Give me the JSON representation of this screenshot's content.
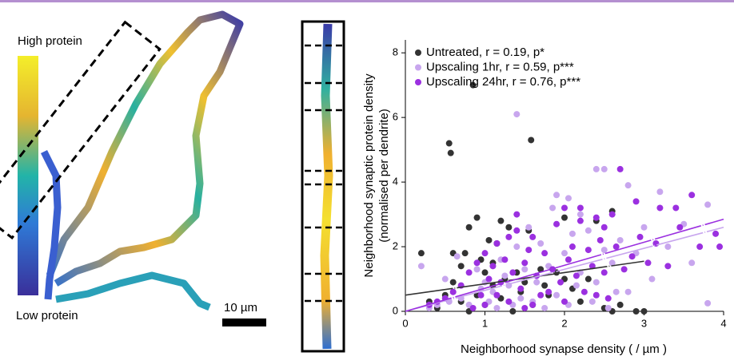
{
  "image_panel": {
    "colorbar_high": "High protein",
    "colorbar_low": "Low protein",
    "scale_bar": "10 µm"
  },
  "chart_data": {
    "type": "scatter",
    "x_label": "Neighborhood synapse density ( / µm )",
    "y_label": [
      "Neighborhood synaptic protein density",
      "(normalised per dendrite)"
    ],
    "xlim": [
      0,
      4
    ],
    "ylim": [
      0,
      8.4
    ],
    "xticks": [
      0,
      1,
      2,
      3,
      4
    ],
    "yticks": [
      0,
      2,
      4,
      6,
      8
    ],
    "legend": "upper left",
    "series": [
      {
        "name": "Untreated, r = 0.19, p*",
        "color": "#333333",
        "x": [
          0.2,
          0.55,
          0.57,
          0.85,
          1.58,
          0.9,
          0.8,
          1.05,
          1.15,
          1.3,
          1.55,
          1.2,
          0.6,
          0.7,
          0.75,
          0.95,
          1.0,
          1.1,
          1.25,
          1.4,
          1.5,
          1.7,
          1.8,
          1.9,
          2.0,
          2.1,
          2.2,
          2.4,
          2.5,
          2.6,
          2.7,
          2.9,
          3.0,
          2.6,
          0.3,
          0.5,
          0.6,
          0.9,
          1.0,
          1.2,
          1.35,
          1.45,
          1.6,
          1.75,
          0.4,
          0.8,
          2.3,
          2.0,
          1.1,
          0.7
        ],
        "values": [
          1.8,
          5.2,
          4.9,
          7.0,
          5.3,
          2.9,
          2.6,
          2.2,
          2.1,
          2.6,
          2.5,
          2.8,
          1.8,
          1.4,
          1.8,
          1.6,
          1.2,
          1.5,
          1.0,
          1.2,
          0.9,
          1.3,
          0.5,
          1.2,
          2.9,
          0.7,
          0.3,
          2.8,
          0.1,
          3.1,
          0.2,
          0.0,
          0.0,
          0.0,
          0.3,
          0.5,
          0.9,
          0.5,
          0.2,
          0.4,
          0.0,
          0.6,
          0.2,
          0.8,
          0.1,
          0.0,
          1.0,
          1.0,
          0.8,
          0.3
        ],
        "fit": {
          "x": [
            0,
            3
          ],
          "values": [
            0.5,
            1.55
          ]
        }
      },
      {
        "name": "Upscaling 1hr, r = 0.59, p***",
        "color": "#c8a6ee",
        "x": [
          1.4,
          2.4,
          2.5,
          2.8,
          3.2,
          3.8,
          3.8,
          1.9,
          1.85,
          2.05,
          2.2,
          0.2,
          0.5,
          0.6,
          0.7,
          0.9,
          1.0,
          1.1,
          1.2,
          1.3,
          1.4,
          1.5,
          1.6,
          1.7,
          1.8,
          1.9,
          2.0,
          2.1,
          2.2,
          2.3,
          2.4,
          2.5,
          2.6,
          2.7,
          2.8,
          2.9,
          3.0,
          3.1,
          3.3,
          3.5,
          3.6,
          0.4,
          0.3,
          0.8,
          1.15,
          1.45,
          1.65,
          1.75,
          2.05,
          2.35,
          2.55,
          2.65,
          1.25,
          0.95,
          0.65,
          1.55,
          2.15,
          1.05,
          1.35,
          0.55
        ],
        "values": [
          6.1,
          4.4,
          4.4,
          3.9,
          3.7,
          3.3,
          0.25,
          3.6,
          3.2,
          3.5,
          3.0,
          1.4,
          1.0,
          0.6,
          0.4,
          1.3,
          0.9,
          0.6,
          1.6,
          0.8,
          2.0,
          1.3,
          0.3,
          2.1,
          1.4,
          0.5,
          1.8,
          2.4,
          1.2,
          2.5,
          0.9,
          1.9,
          1.5,
          2.2,
          0.6,
          1.8,
          2.6,
          1.0,
          2.0,
          2.7,
          1.5,
          0.2,
          0.1,
          0.2,
          0.1,
          0.4,
          0.9,
          0.1,
          0.2,
          0.3,
          0.1,
          0.6,
          1.1,
          0.7,
          1.7,
          2.6,
          0.8,
          0.3,
          0.2,
          0.3
        ],
        "fit": {
          "x": [
            0,
            4
          ],
          "values": [
            0,
            2.6
          ]
        }
      },
      {
        "name": "Upscaling 24hr, r = 0.76, p***",
        "color": "#9b30e0",
        "x": [
          2.7,
          3.2,
          3.4,
          3.6,
          3.9,
          3.95,
          2.9,
          2.6,
          2.4,
          2.2,
          2.0,
          1.9,
          1.6,
          1.4,
          1.3,
          1.15,
          1.0,
          0.9,
          0.8,
          0.7,
          0.6,
          0.5,
          0.3,
          0.4,
          1.05,
          1.1,
          1.2,
          1.25,
          1.35,
          1.45,
          1.5,
          1.55,
          1.65,
          1.7,
          1.75,
          1.85,
          1.95,
          2.05,
          2.1,
          2.15,
          2.25,
          2.3,
          2.35,
          2.45,
          2.5,
          2.55,
          2.65,
          2.75,
          2.85,
          2.95,
          3.05,
          3.15,
          3.3,
          3.45,
          3.7,
          1.0,
          1.3,
          0.85,
          1.15,
          1.6,
          1.8,
          2.0,
          2.4,
          0.95,
          1.5,
          1.4,
          2.5,
          2.2
        ],
        "values": [
          4.4,
          3.2,
          3.2,
          3.6,
          2.4,
          2.0,
          3.4,
          3.0,
          2.9,
          3.2,
          3.2,
          2.7,
          2.3,
          2.5,
          2.3,
          2.1,
          1.8,
          1.5,
          1.2,
          0.8,
          0.6,
          0.4,
          0.2,
          0.3,
          1.0,
          1.4,
          0.9,
          1.6,
          1.2,
          0.7,
          1.5,
          1.9,
          1.1,
          0.5,
          1.8,
          1.3,
          0.9,
          1.6,
          2.0,
          1.1,
          0.6,
          1.9,
          1.4,
          2.2,
          1.2,
          0.4,
          2.0,
          1.3,
          1.7,
          2.3,
          1.5,
          2.1,
          1.4,
          2.6,
          2.0,
          0.2,
          0.3,
          0.1,
          0.5,
          0.2,
          0.6,
          0.3,
          0.5,
          0.5,
          0.1,
          3.0,
          2.6,
          2.8
        ],
        "fit": {
          "x": [
            0,
            4
          ],
          "values": [
            0,
            2.85
          ]
        }
      }
    ]
  }
}
